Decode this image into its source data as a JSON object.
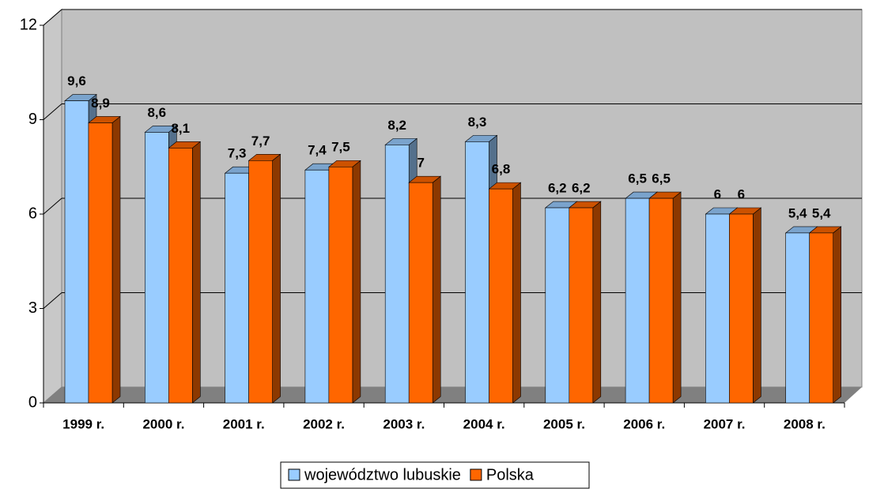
{
  "chart_data": {
    "type": "bar",
    "categories": [
      "1999 r.",
      "2000 r.",
      "2001 r.",
      "2002 r.",
      "2003 r.",
      "2004 r.",
      "2005 r.",
      "2006 r.",
      "2007 r.",
      "2008 r."
    ],
    "series": [
      {
        "name": "województwo lubuskie",
        "color": "#99ccff",
        "values": [
          9.6,
          8.6,
          7.3,
          7.4,
          8.2,
          8.3,
          6.2,
          6.5,
          6,
          5.4
        ],
        "value_labels": [
          "9,6",
          "8,6",
          "7,3",
          "7,4",
          "8,2",
          "8,3",
          "6,2",
          "6,5",
          "6",
          "5,4"
        ]
      },
      {
        "name": "Polska",
        "color": "#ff6600",
        "values": [
          8.9,
          8.1,
          7.7,
          7.5,
          7,
          6.8,
          6.2,
          6.5,
          6,
          5.4
        ],
        "value_labels": [
          "8,9",
          "8,1",
          "7,7",
          "7,5",
          "7",
          "6,8",
          "6,2",
          "6,5",
          "6",
          "5,4"
        ]
      }
    ],
    "ylim": [
      0,
      12
    ],
    "yticks": [
      0,
      3,
      6,
      9,
      12
    ],
    "grid": true,
    "legend": "bottom"
  }
}
